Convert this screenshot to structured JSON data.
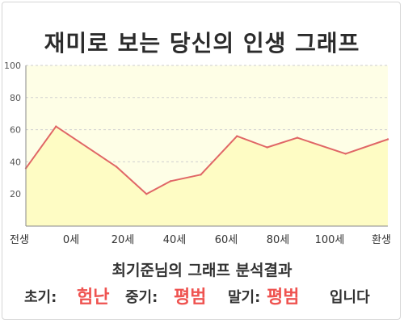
{
  "title": "재미로 보는 당신의 인생 그래프",
  "chart_data": {
    "type": "area",
    "x_labels": [
      "전생",
      "0세",
      "20세",
      "40세",
      "60세",
      "80세",
      "100세",
      "환생"
    ],
    "x": [
      -5,
      0,
      10,
      15,
      19,
      24,
      30,
      35,
      40,
      48,
      55
    ],
    "values": [
      36,
      62,
      37,
      20,
      28,
      32,
      56,
      49,
      55,
      45,
      54
    ],
    "y_ticks": [
      20,
      40,
      60,
      80,
      100
    ],
    "ylim": [
      0,
      100
    ],
    "line_color": "#e06666",
    "fill_color": "#fefcc4",
    "grid": true
  },
  "summary": {
    "heading": "최기준님의 그래프 분석결과",
    "early_label": "초기:",
    "early_value": "험난",
    "middle_label": "중기:",
    "middle_value": "평범",
    "late_label": "말기:",
    "late_value": "평범",
    "ending": "입니다"
  },
  "colors": {
    "highlight": "#ef5350",
    "plot_background": "#fefee6"
  }
}
